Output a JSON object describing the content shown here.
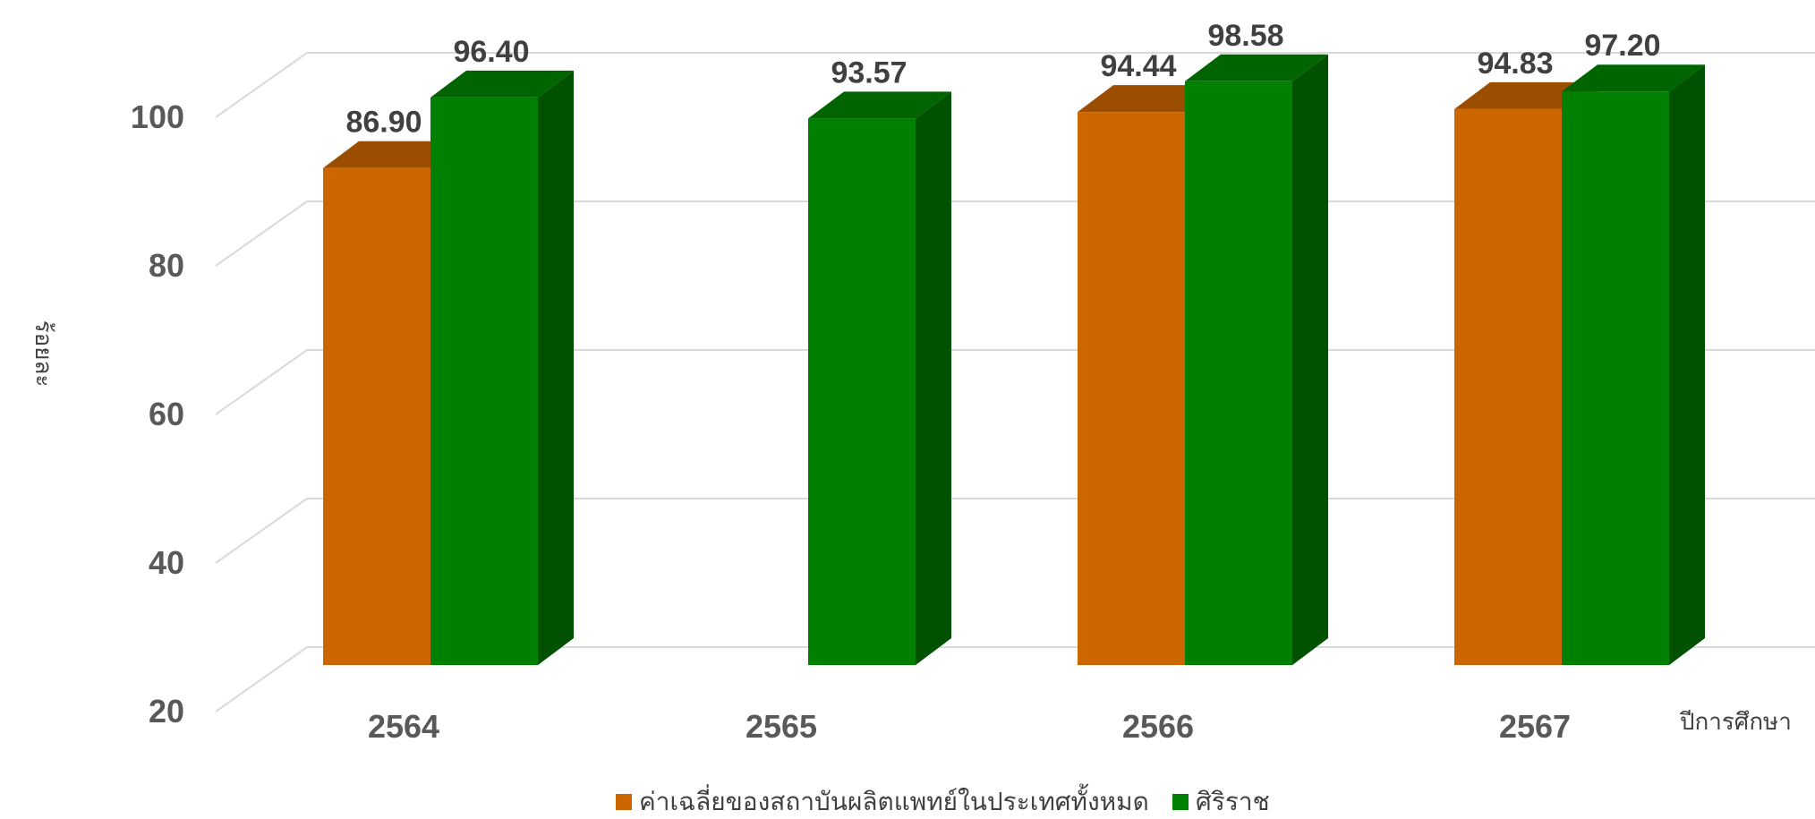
{
  "chart_data": {
    "type": "bar",
    "title": "",
    "xlabel": "ปีการศึกษา",
    "ylabel": "ร้อยละ",
    "categories": [
      "2564",
      "2565",
      "2566",
      "2567"
    ],
    "series": [
      {
        "name": "ค่าเฉลี่ยของสถาบันผลิตแพทย์ในประเทศทั้งหมด",
        "values": [
          86.9,
          null,
          94.44,
          94.83
        ],
        "labels": [
          "86.90",
          "",
          "94.44",
          "94.83"
        ],
        "color": "#cc6600",
        "top_color": "#9b4d00"
      },
      {
        "name": "ศิริราช",
        "values": [
          96.4,
          93.57,
          98.58,
          97.2
        ],
        "labels": [
          "96.40",
          "93.57",
          "98.58",
          "97.20"
        ],
        "color": "#008000",
        "top_color": "#006400",
        "side_color": "#005200"
      }
    ],
    "yticks": [
      "20",
      "40",
      "60",
      "80",
      "100"
    ],
    "ylim": [
      20,
      100
    ],
    "grid": true,
    "legend_position": "bottom",
    "style": "3d-column"
  }
}
